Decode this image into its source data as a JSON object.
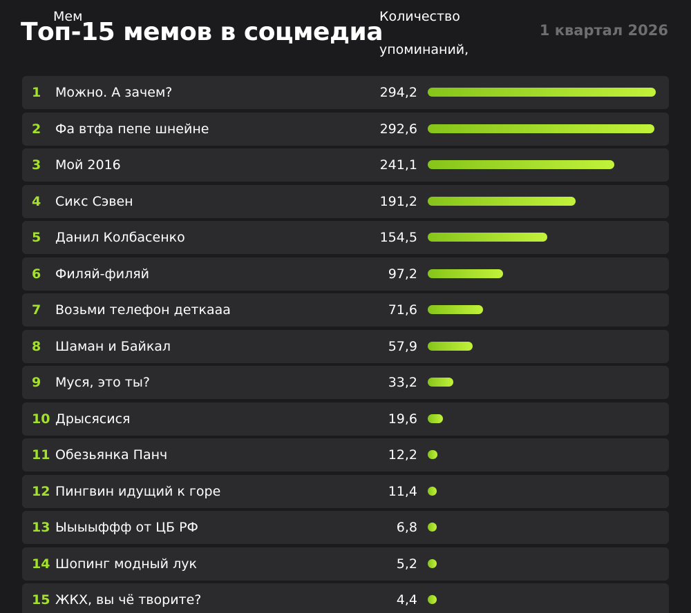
{
  "header": {
    "title": "Топ-15 мемов в соцмедиа",
    "period": "1 квартал 2026"
  },
  "columns": {
    "name": "Мем",
    "value": "Количество упоминаний, тыс."
  },
  "colors": {
    "background": "#1b1b1d",
    "row": "#2b2b2e",
    "accent": "#a3e12b"
  },
  "chart_data": {
    "type": "bar",
    "orientation": "horizontal",
    "title": "Топ-15 мемов в соцмедиа",
    "subtitle": "1 квартал 2026",
    "xlabel": "Количество упоминаний, тыс.",
    "ylabel": "Мем",
    "xlim": [
      0,
      294.2
    ],
    "grid": false,
    "ranks": [
      "1",
      "2",
      "3",
      "4",
      "5",
      "6",
      "7",
      "8",
      "9",
      "10",
      "11",
      "12",
      "13",
      "14",
      "15"
    ],
    "categories": [
      "Можно. А зачем?",
      "Фа втфа пепе шнейне",
      "Мой 2016",
      "Сикс Сэвен",
      "Данил Колбасенко",
      "Филяй-филяй",
      "Возьми телефон деткааа",
      "Шаман и Байкал",
      "Муся, это ты?",
      "Дрысясися",
      "Обезьянка Панч",
      "Пингвин идущий к горе",
      "Ыыыыффф от ЦБ РФ",
      "Шопинг модный лук",
      "ЖКХ, вы чё творите?"
    ],
    "values": [
      294.2,
      292.6,
      241.1,
      191.2,
      154.5,
      97.2,
      71.6,
      57.9,
      33.2,
      19.6,
      12.2,
      11.4,
      6.8,
      5.2,
      4.4
    ],
    "value_labels": [
      "294,2",
      "292,6",
      "241,1",
      "191,2",
      "154,5",
      "97,2",
      "71,6",
      "57,9",
      "33,2",
      "19,6",
      "12,2",
      "11,4",
      "6,8",
      "5,2",
      "4,4"
    ]
  }
}
